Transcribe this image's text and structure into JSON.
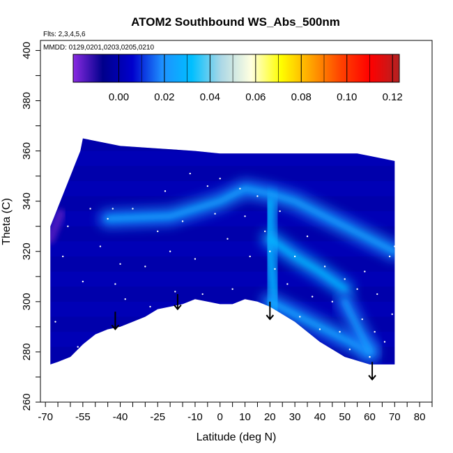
{
  "chart_data": {
    "type": "heatmap",
    "title": "ATOM2 Southbound WS_Abs_500nm",
    "annotations": [
      "Flts: 2,3,4,5,6",
      "MMDD: 0129,0201,0203,0205,0210"
    ],
    "xlabel": "Latitude (deg N)",
    "ylabel": "Theta (C)",
    "xlim": [
      -72,
      85
    ],
    "ylim": [
      260,
      404
    ],
    "x_ticks": [
      "-70",
      "-55",
      "-40",
      "-25",
      "-10",
      "0",
      "10",
      "20",
      "30",
      "40",
      "50",
      "60",
      "70",
      "80"
    ],
    "y_ticks": [
      "260",
      "280",
      "300",
      "320",
      "340",
      "360",
      "380",
      "400"
    ],
    "colorbar": {
      "range": [
        -0.02,
        0.123
      ],
      "ticks": [
        "0.00",
        "0.02",
        "0.04",
        "0.06",
        "0.08",
        "0.10",
        "0.12"
      ],
      "colors": [
        "#8a2be2",
        "#00008b",
        "#0000cd",
        "#1e90ff",
        "#00bfff",
        "#add8e6",
        "#ffffe0",
        "#ffff00",
        "#ffa500",
        "#ff4500",
        "#ff0000",
        "#b22222"
      ]
    },
    "background_value": 0.0,
    "field_outline": {
      "x": [
        -68,
        -68,
        -66,
        -64,
        -62,
        -60,
        -58,
        -56,
        -55,
        -40,
        -25,
        -10,
        0,
        10,
        25,
        40,
        55,
        60,
        70,
        70,
        60,
        50,
        40,
        30,
        20,
        15,
        10,
        5,
        0,
        -5,
        -10,
        -15,
        -20,
        -25,
        -30,
        -35,
        -40,
        -45,
        -50,
        -55,
        -60,
        -65,
        -68
      ],
      "y": [
        275,
        330,
        335,
        340,
        345,
        350,
        355,
        360,
        365,
        362,
        361,
        360,
        359,
        359,
        359,
        359,
        359,
        358,
        356,
        275,
        275,
        278,
        284,
        292,
        298,
        300,
        301,
        299,
        299,
        300,
        301,
        299,
        298,
        297,
        294,
        292,
        290,
        289,
        287,
        283,
        278,
        276,
        275
      ]
    },
    "features": [
      {
        "name": "upper ridge",
        "x": [
          -45,
          -20,
          0,
          10,
          20,
          30,
          40,
          50,
          60,
          70
        ],
        "y": [
          333,
          334,
          340,
          345,
          343,
          340,
          335,
          330,
          325,
          320
        ],
        "value": 0.02
      },
      {
        "name": "central column",
        "x": [
          20,
          20,
          22
        ],
        "y": [
          340,
          320,
          298
        ],
        "value": 0.025
      },
      {
        "name": "diagonal streak",
        "x": [
          20,
          30,
          40,
          50
        ],
        "y": [
          325,
          318,
          312,
          305
        ],
        "value": 0.025
      },
      {
        "name": "descending band",
        "x": [
          20,
          30,
          40,
          50,
          60
        ],
        "y": [
          300,
          295,
          290,
          285,
          280
        ],
        "value": 0.02
      },
      {
        "name": "lower-right lobe",
        "x": [
          50,
          55,
          60
        ],
        "y": [
          300,
          290,
          280
        ],
        "value": 0.018
      }
    ],
    "negative_patch": {
      "x": [
        -68,
        -66,
        -64
      ],
      "y": [
        325,
        330,
        335
      ],
      "value": -0.015
    },
    "sample_points": [
      [
        -66,
        292
      ],
      [
        -63,
        318
      ],
      [
        -61,
        330
      ],
      [
        -57,
        282
      ],
      [
        -55,
        308
      ],
      [
        -52,
        337
      ],
      [
        -48,
        322
      ],
      [
        -45,
        333
      ],
      [
        -43,
        337
      ],
      [
        -42,
        307
      ],
      [
        -40,
        315
      ],
      [
        -38,
        301
      ],
      [
        -35,
        337
      ],
      [
        -30,
        314
      ],
      [
        -28,
        298
      ],
      [
        -25,
        328
      ],
      [
        -22,
        344
      ],
      [
        -20,
        320
      ],
      [
        -18,
        304
      ],
      [
        -15,
        332
      ],
      [
        -12,
        351
      ],
      [
        -10,
        317
      ],
      [
        -7,
        303
      ],
      [
        -5,
        346
      ],
      [
        -2,
        335
      ],
      [
        0,
        349
      ],
      [
        3,
        325
      ],
      [
        5,
        305
      ],
      [
        8,
        345
      ],
      [
        10,
        334
      ],
      [
        12,
        318
      ],
      [
        15,
        342
      ],
      [
        18,
        328
      ],
      [
        20,
        320
      ],
      [
        22,
        313
      ],
      [
        24,
        336
      ],
      [
        27,
        307
      ],
      [
        30,
        318
      ],
      [
        32,
        294
      ],
      [
        35,
        326
      ],
      [
        37,
        302
      ],
      [
        40,
        289
      ],
      [
        42,
        314
      ],
      [
        45,
        300
      ],
      [
        48,
        288
      ],
      [
        50,
        309
      ],
      [
        52,
        281
      ],
      [
        55,
        305
      ],
      [
        57,
        293
      ],
      [
        58,
        312
      ],
      [
        60,
        278
      ],
      [
        62,
        288
      ],
      [
        63,
        303
      ],
      [
        66,
        284
      ],
      [
        68,
        318
      ],
      [
        69,
        295
      ],
      [
        70,
        322
      ]
    ],
    "arrows": [
      {
        "x": -42,
        "y_from": 296,
        "y_to": 289
      },
      {
        "x": -17,
        "y_from": 303,
        "y_to": 297
      },
      {
        "x": 20,
        "y_from": 300,
        "y_to": 293
      },
      {
        "x": 61,
        "y_from": 276,
        "y_to": 269
      }
    ],
    "grid": false,
    "legend": "top colorbar"
  }
}
